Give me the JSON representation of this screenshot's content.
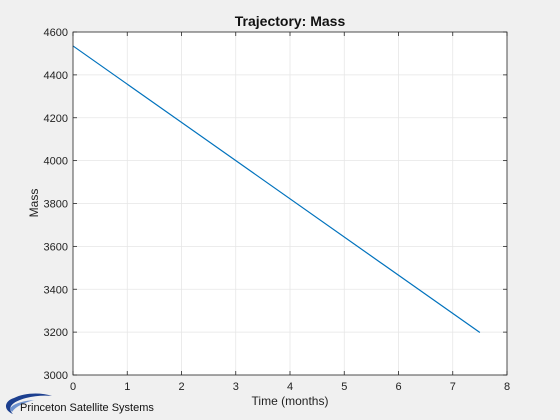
{
  "chart_data": {
    "type": "line",
    "title": "Trajectory: Mass",
    "xlabel": "Time (months)",
    "ylabel": "Mass",
    "xlim": [
      0,
      8
    ],
    "ylim": [
      3000,
      4600
    ],
    "xticks": [
      "0",
      "1",
      "2",
      "3",
      "4",
      "5",
      "6",
      "7",
      "8"
    ],
    "yticks": [
      "3000",
      "3200",
      "3400",
      "3600",
      "3800",
      "4000",
      "4200",
      "4400",
      "4600"
    ],
    "grid": true,
    "series": [
      {
        "color": "#0072bd",
        "points": [
          [
            0,
            4535
          ],
          [
            7.5,
            3198
          ]
        ]
      }
    ]
  },
  "branding": {
    "company": "Princeton Satellite Systems",
    "logo_icon": "princeton-satellite-systems-swoosh-icon"
  },
  "colors": {
    "figure_background": "#f0f0f0",
    "axes_background": "#ffffff",
    "grid": "#e6e6e6",
    "line": "#0072bd"
  }
}
